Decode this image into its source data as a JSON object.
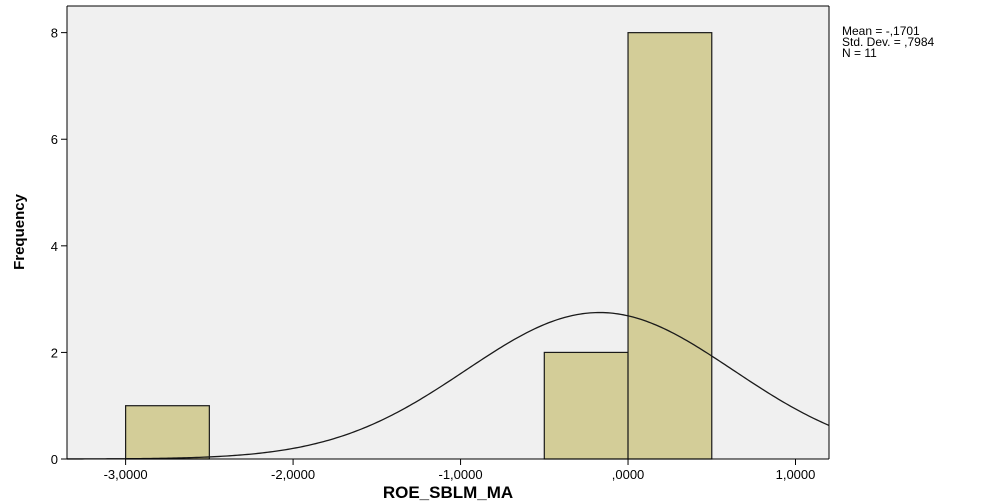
{
  "chart_data": {
    "type": "bar",
    "subtype": "histogram",
    "xlabel": "ROE_SBLM_MA",
    "ylabel": "Frequency",
    "xlim": [
      -3.35,
      1.2
    ],
    "ylim": [
      0,
      8.5
    ],
    "x_ticks": [
      {
        "value": -3,
        "label": "-3,0000"
      },
      {
        "value": -2,
        "label": "-2,0000"
      },
      {
        "value": -1,
        "label": "-1,0000"
      },
      {
        "value": 0,
        "label": ",0000"
      },
      {
        "value": 1,
        "label": "1,0000"
      }
    ],
    "y_ticks": [
      {
        "value": 0,
        "label": "0"
      },
      {
        "value": 2,
        "label": "2"
      },
      {
        "value": 4,
        "label": "4"
      },
      {
        "value": 6,
        "label": "6"
      },
      {
        "value": 8,
        "label": "8"
      }
    ],
    "bins": [
      {
        "x0": -3.0,
        "x1": -2.5,
        "count": 1
      },
      {
        "x0": -0.5,
        "x1": 0.0,
        "count": 2
      },
      {
        "x0": 0.0,
        "x1": 0.5,
        "count": 8
      }
    ],
    "normal_curve": {
      "mean": -0.1701,
      "std": 0.7984,
      "n": 11,
      "bin_width": 0.5
    },
    "stats_lines": [
      "Mean = -,1701",
      "Std. Dev. = ,7984",
      "N = 11"
    ],
    "colors": {
      "bar_fill": "#d3cd98",
      "bar_stroke": "#1a1a1a",
      "plot_bg": "#f0f0f0",
      "curve": "#1a1a1a"
    },
    "grid": false,
    "legend": "none"
  }
}
